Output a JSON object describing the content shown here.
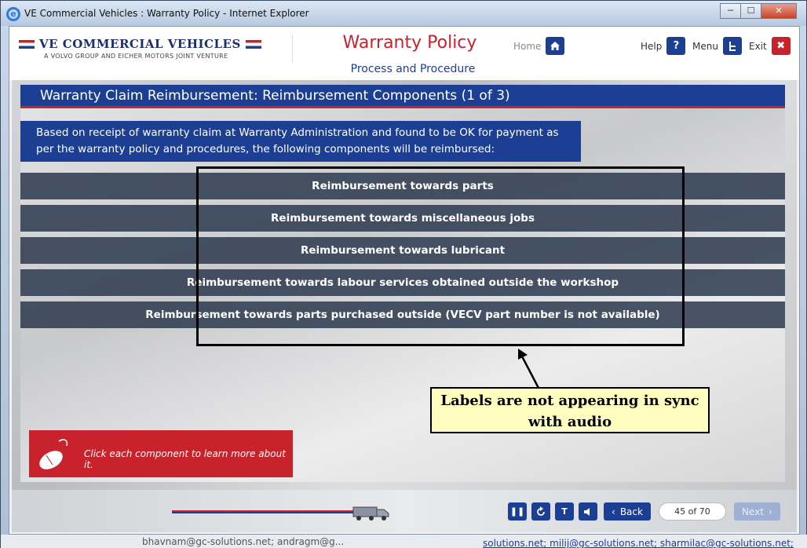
{
  "window": {
    "title": "VE Commercial Vehicles : Warranty Policy - Internet Explorer",
    "min_glyph": "─",
    "max_glyph": "☐",
    "close_glyph": "✕"
  },
  "header": {
    "logo_text": "VE COMMERCIAL VEHICLES",
    "logo_tagline": "A VOLVO GROUP AND EICHER MOTORS JOINT VENTURE",
    "course_title": "Warranty Policy",
    "course_subtitle": "Process and Procedure",
    "home_label": "Home",
    "help_label": "Help",
    "menu_label": "Menu",
    "exit_label": "Exit",
    "icons": {
      "home": "home-icon",
      "help": "help-icon",
      "menu": "menu-icon",
      "exit": "close-icon"
    }
  },
  "slide": {
    "title": "Warranty Claim Reimbursement: Reimbursement Components (1 of 3)",
    "intro": "Based on receipt of warranty claim at Warranty Administration and found to be OK for payment as per the warranty policy and procedures, the following components will be reimbursed:",
    "components": [
      "Reimbursement towards parts",
      "Reimbursement towards miscellaneous jobs",
      "Reimbursement towards lubricant",
      "Reimbursement towards labour services obtained outside the workshop",
      "Reimbursement towards parts purchased outside (VECV part number is not available)"
    ],
    "callout_note": "Labels are not appearing in sync with audio",
    "instruction": "Click each component to learn more about it."
  },
  "footer": {
    "back_label": "Back",
    "next_label": "Next",
    "page_indicator": "45 of 70",
    "progress": 0.64,
    "icons": [
      "pause-icon",
      "replay-icon",
      "transcript-icon",
      "audio-icon"
    ]
  },
  "background_peek": {
    "left_text": "bhavnam@gc-solutions.net; andragm@g...",
    "right_text": "solutions.net; milij@gc-solutions.net; sharmilac@gc-solutions.net; an"
  },
  "colors": {
    "brand_blue": "#1c3f94",
    "brand_red": "#c8232c",
    "note_bg": "#fffdc0"
  }
}
